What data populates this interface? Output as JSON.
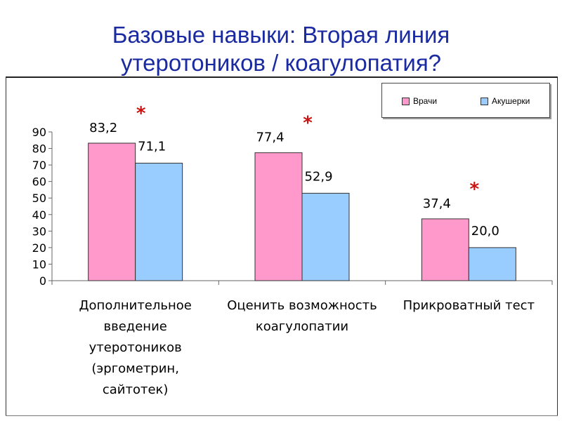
{
  "slide": {
    "title_line1": "Базовые навыки: Вторая линия",
    "title_line2": "утеротоников / коагулопатия?"
  },
  "colors": {
    "series_1": "#ff99cc",
    "series_2": "#99ccff",
    "title": "#1a2aa0",
    "marker": "#cc1111"
  },
  "chart_data": {
    "type": "bar",
    "categories": [
      [
        "Дополнительное",
        "введение",
        "утеротоников",
        "(эргометрин,",
        "сайтотек)"
      ],
      [
        "Оценить возможность",
        "коагулопатии"
      ],
      [
        "Прикроватный тест"
      ]
    ],
    "series": [
      {
        "name": "Врачи",
        "values": [
          83.2,
          77.4,
          37.4
        ],
        "labels": [
          "83,2",
          "77,4",
          "37,4"
        ]
      },
      {
        "name": "Акушерки",
        "values": [
          71.1,
          52.9,
          20.0
        ],
        "labels": [
          "71,1",
          "52,9",
          "20,0"
        ]
      }
    ],
    "significance_marker": "*",
    "ylim": [
      0,
      90
    ],
    "yticks": [
      "0",
      "10",
      "20",
      "30",
      "40",
      "50",
      "60",
      "70",
      "80",
      "90"
    ],
    "grid": false,
    "legend_position": "top-right"
  }
}
